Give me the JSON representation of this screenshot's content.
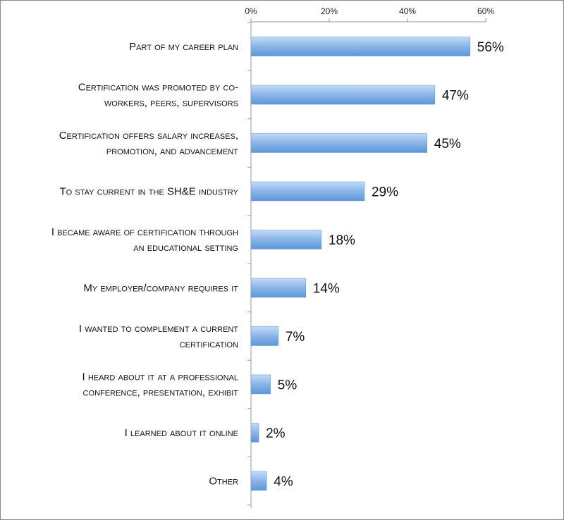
{
  "chart_data": {
    "type": "bar",
    "orientation": "horizontal",
    "title": "",
    "xlabel": "",
    "ylabel": "",
    "xlim": [
      0,
      60
    ],
    "ticks": [
      0,
      20,
      40,
      60
    ],
    "tick_labels": [
      "0%",
      "20%",
      "40%",
      "60%"
    ],
    "axis_position": "top",
    "grid": false,
    "categories": [
      [
        "Part of my career plan"
      ],
      [
        "Certification was promoted by co-",
        "workers, peers, supervisors"
      ],
      [
        "Certification offers salary increases,",
        "promotion, and advancement"
      ],
      [
        "To stay current in the SH&E industry"
      ],
      [
        "I became aware of certification through",
        "an educational setting"
      ],
      [
        "My employer/company requires it"
      ],
      [
        "I wanted to complement a current",
        "certification"
      ],
      [
        "I heard about it at a professional",
        "conference, presentation, exhibit"
      ],
      [
        "I learned about it online"
      ],
      [
        "Other"
      ]
    ],
    "values": [
      56,
      47,
      45,
      29,
      18,
      14,
      7,
      5,
      2,
      4
    ],
    "data_labels": [
      "56%",
      "47%",
      "45%",
      "29%",
      "18%",
      "14%",
      "7%",
      "5%",
      "2%",
      "4%"
    ],
    "bar_color": "#8fb8ea",
    "bar_color_dark": "#4a86d0"
  }
}
